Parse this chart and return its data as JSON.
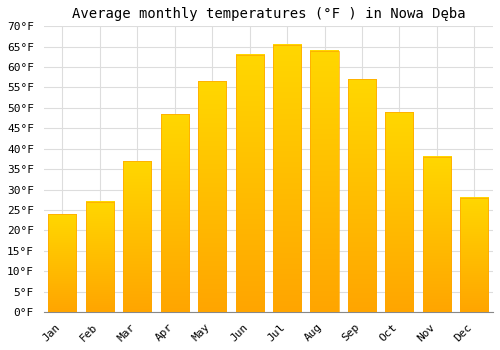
{
  "title": "Average monthly temperatures (°F ) in Nowa Dęba",
  "months": [
    "Jan",
    "Feb",
    "Mar",
    "Apr",
    "May",
    "Jun",
    "Jul",
    "Aug",
    "Sep",
    "Oct",
    "Nov",
    "Dec"
  ],
  "values": [
    24.0,
    27.0,
    37.0,
    48.5,
    56.5,
    63.0,
    65.5,
    64.0,
    57.0,
    49.0,
    38.0,
    28.0
  ],
  "bar_color_top": "#FFD700",
  "bar_color_bottom": "#FFA500",
  "background_color": "#FFFFFF",
  "grid_color": "#DDDDDD",
  "ylim": [
    0,
    70
  ],
  "yticks": [
    0,
    5,
    10,
    15,
    20,
    25,
    30,
    35,
    40,
    45,
    50,
    55,
    60,
    65,
    70
  ],
  "title_fontsize": 10,
  "tick_fontsize": 8,
  "font_family": "monospace",
  "bar_width": 0.75
}
